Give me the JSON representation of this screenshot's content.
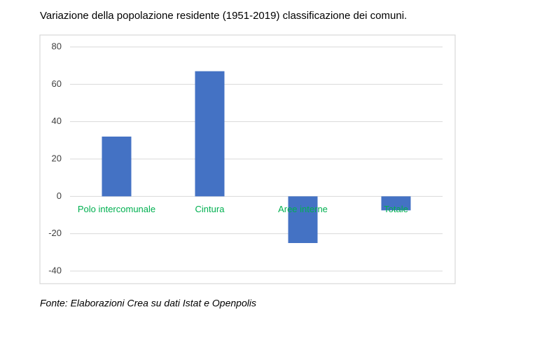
{
  "chart_data": {
    "type": "bar",
    "title": "Variazione della popolazione residente (1951-2019) classificazione dei comuni.",
    "source": "Fonte: Elaborazioni Crea su dati Istat e Openpolis",
    "categories": [
      "Polo intercomunale",
      "Cintura",
      "Aree interne",
      "Totale"
    ],
    "values": [
      32,
      67,
      -25,
      -7.5
    ],
    "color": "#4472c4",
    "label_color": "#00b050",
    "ylim": [
      -40,
      80
    ],
    "yticks": [
      -40,
      -20,
      0,
      20,
      40,
      60,
      80
    ],
    "grid": true
  }
}
